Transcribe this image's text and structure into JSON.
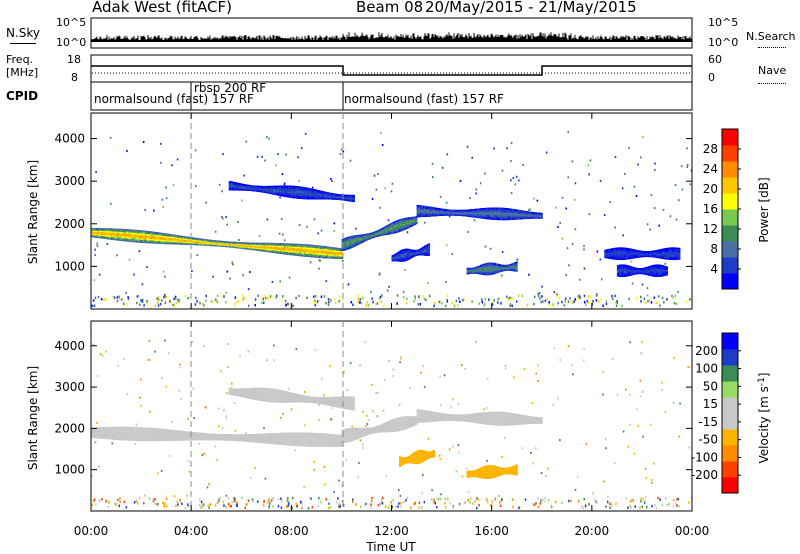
{
  "header": {
    "station": "Adak West (fitACF)",
    "beam": "Beam 08",
    "date_range": "20/May/2015 - 21/May/2015"
  },
  "summary_panels": {
    "nsky": {
      "label": "N.Sky",
      "right_label": "N.Search",
      "left_ticks": [
        "10^5",
        "10^0"
      ],
      "right_ticks": [
        "10^5",
        "10^0"
      ]
    },
    "freq": {
      "label_line1": "Freq.",
      "label_line2": "[MHz]",
      "right_label": "Nave",
      "left_ticks": [
        "18",
        "8"
      ],
      "right_ticks": [
        "60",
        "0"
      ]
    },
    "cpid": {
      "label": "CPID",
      "segments": [
        {
          "text": "normalsound (fast) 157 RF",
          "start_hour": 0,
          "end_hour": 10
        },
        {
          "text": "rbsp 200 RF",
          "start_hour": 4,
          "end_hour": 10
        },
        {
          "text": "normalsound (fast) 157 RF",
          "start_hour": 10,
          "end_hour": 24
        }
      ]
    }
  },
  "colors": {
    "power_scale": [
      "#0000ff",
      "#1e3cc8",
      "#4a6fa5",
      "#3c8c5a",
      "#78c850",
      "#ffff00",
      "#ffc800",
      "#ff8c00",
      "#ff4000",
      "#ff0000"
    ],
    "velocity_scale": [
      "#ff0000",
      "#ff4000",
      "#ff8c00",
      "#ffb400",
      "#c8c8c8",
      "#c8c8c8",
      "#96dc64",
      "#3c8c5a",
      "#1e3cc8",
      "#0000ff"
    ],
    "ground_scatter": "#c8c8c8"
  },
  "chart_data": [
    {
      "type": "heatmap",
      "name": "power",
      "ylabel": "Slant Range [km]",
      "y_ticks": [
        1000,
        2000,
        3000,
        4000
      ],
      "ylim": [
        0,
        4600
      ],
      "colorbar_label": "Power [dB]",
      "colorbar_ticks": [
        "4",
        "8",
        "12",
        "16",
        "20",
        "24",
        "28"
      ],
      "colorbar_range": [
        0,
        32
      ],
      "features": [
        {
          "start_hour": 0.0,
          "end_hour": 10.0,
          "range_start_km": 1800,
          "range_end_km": 1300,
          "value": 22
        },
        {
          "start_hour": 10.0,
          "end_hour": 13.0,
          "range_start_km": 1500,
          "range_end_km": 2100,
          "value": 12
        },
        {
          "start_hour": 13.0,
          "end_hour": 18.0,
          "range_start_km": 2300,
          "range_end_km": 2200,
          "value": 8
        },
        {
          "start_hour": 5.5,
          "end_hour": 10.5,
          "range_start_km": 2900,
          "range_end_km": 2600,
          "value": 6
        },
        {
          "start_hour": 15.0,
          "end_hour": 17.0,
          "range_start_km": 900,
          "range_end_km": 1000,
          "value": 10
        },
        {
          "start_hour": 12.0,
          "end_hour": 13.5,
          "range_start_km": 1200,
          "range_end_km": 1400,
          "value": 6
        },
        {
          "start_hour": 20.5,
          "end_hour": 23.5,
          "range_start_km": 1300,
          "range_end_km": 1300,
          "value": 5
        },
        {
          "start_hour": 21.0,
          "end_hour": 23.0,
          "range_start_km": 900,
          "range_end_km": 900,
          "value": 5
        }
      ]
    },
    {
      "type": "heatmap",
      "name": "velocity",
      "ylabel": "Slant Range [km]",
      "y_ticks": [
        1000,
        2000,
        3000,
        4000
      ],
      "ylim": [
        0,
        4600
      ],
      "colorbar_label": "Velocity [m s^-1]",
      "colorbar_ticks": [
        "-200",
        "-100",
        "-50",
        "-15",
        "15",
        "50",
        "100",
        "200"
      ],
      "colorbar_range": [
        -250,
        250
      ],
      "features": [
        {
          "start_hour": 0.0,
          "end_hour": 10.0,
          "range_start_km": 1900,
          "range_end_km": 1700,
          "value": 0
        },
        {
          "start_hour": 10.0,
          "end_hour": 13.0,
          "range_start_km": 1800,
          "range_end_km": 2200,
          "value": -10
        },
        {
          "start_hour": 13.0,
          "end_hour": 18.0,
          "range_start_km": 2300,
          "range_end_km": 2200,
          "value": 0
        },
        {
          "start_hour": 12.3,
          "end_hour": 13.7,
          "range_start_km": 1200,
          "range_end_km": 1400,
          "value": -70
        },
        {
          "start_hour": 15.0,
          "end_hour": 17.0,
          "range_start_km": 900,
          "range_end_km": 1000,
          "value": -70
        },
        {
          "start_hour": 5.5,
          "end_hour": 10.5,
          "range_start_km": 2900,
          "range_end_km": 2600,
          "value": 0
        }
      ]
    }
  ],
  "x_axis": {
    "label": "Time UT",
    "ticks": [
      "00:00",
      "04:00",
      "08:00",
      "12:00",
      "16:00",
      "20:00",
      "00:00"
    ],
    "tick_hours": [
      0,
      4,
      8,
      12,
      16,
      20,
      24
    ]
  }
}
